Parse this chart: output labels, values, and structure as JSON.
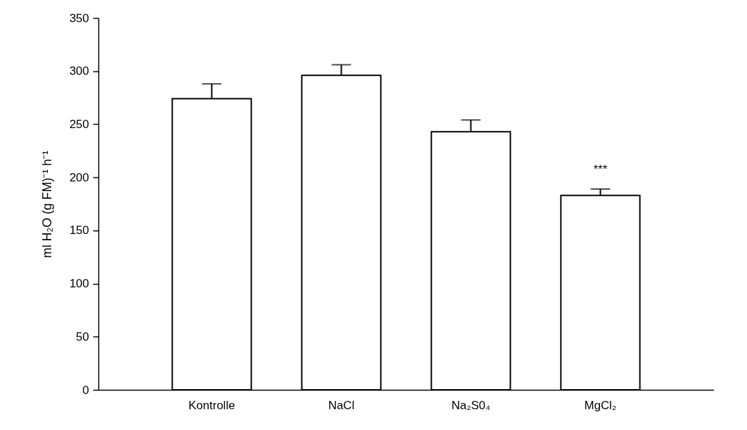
{
  "chart_data": {
    "type": "bar",
    "ylabel": "ml H₂O (g FM)⁻¹ h⁻¹",
    "categories": [
      "Kontrolle",
      "NaCl",
      "Na₂S0₄",
      "MgCl₂"
    ],
    "values": [
      274,
      296,
      243,
      183
    ],
    "errors": [
      14,
      10,
      11,
      6
    ],
    "colors": [
      "#ffffff",
      "#ffffff",
      "#ffffff",
      "#ffffff"
    ],
    "ylim": [
      0,
      350
    ],
    "yticks": [
      0,
      50,
      100,
      150,
      200,
      250,
      300,
      350
    ],
    "annotations": [
      "***"
    ]
  }
}
